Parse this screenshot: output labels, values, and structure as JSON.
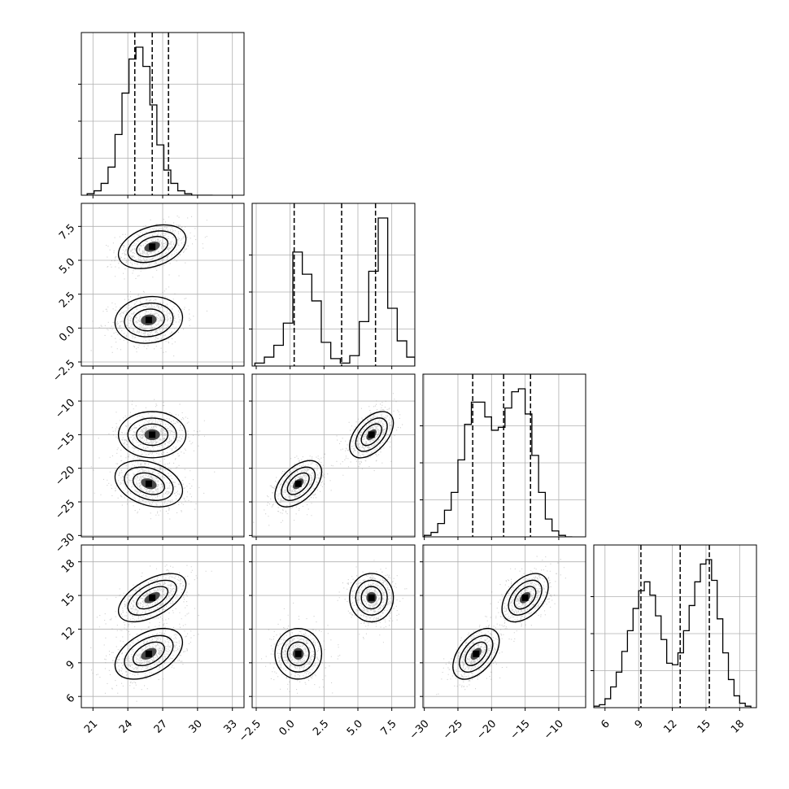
{
  "chart_data": {
    "type": "corner",
    "parameters": [
      {
        "range": [
          20,
          34
        ],
        "ticks": [
          21,
          24,
          27,
          30,
          33
        ],
        "tick_labels": [
          "21",
          "24",
          "27",
          "30",
          "33"
        ]
      },
      {
        "range": [
          -2.8,
          9.2
        ],
        "ticks": [
          -2.5,
          0.0,
          2.5,
          5.0,
          7.5
        ],
        "tick_labels": [
          "−2.5",
          "0.0",
          "2.5",
          "5.0",
          "7.5"
        ]
      },
      {
        "range": [
          -30.2,
          -6.0
        ],
        "ticks": [
          -30,
          -25,
          -20,
          -15,
          -10
        ],
        "tick_labels": [
          "−30",
          "−25",
          "−20",
          "−15",
          "−10"
        ]
      },
      {
        "range": [
          5,
          19.5
        ],
        "ticks": [
          6,
          9,
          12,
          15,
          18
        ],
        "tick_labels": [
          "6",
          "9",
          "12",
          "15",
          "18"
        ]
      }
    ],
    "quantiles": [
      [
        24.6,
        26.1,
        27.5
      ],
      [
        0.3,
        3.8,
        6.3
      ],
      [
        -22.8,
        -18.2,
        -14.2
      ],
      [
        9.2,
        12.7,
        15.3
      ]
    ],
    "histograms": [
      {
        "bin_edges": [
          20.5,
          21.1,
          21.7,
          22.3,
          22.9,
          23.5,
          24.1,
          24.7,
          25.3,
          25.9,
          26.5,
          27.1,
          27.7,
          28.3,
          28.9,
          29.5,
          30.1,
          30.7,
          31.3
        ],
        "counts": [
          1,
          3,
          8,
          19,
          41,
          69,
          92,
          100,
          87,
          61,
          34,
          17,
          8,
          3,
          1,
          0,
          0,
          0
        ]
      },
      {
        "bin_edges": [
          -2.6,
          -1.9,
          -1.2,
          -0.5,
          0.2,
          0.9,
          1.6,
          2.3,
          3.0,
          3.7,
          4.4,
          5.1,
          5.8,
          6.5,
          7.2,
          7.9,
          8.6,
          9.2
        ],
        "counts": [
          2,
          6,
          14,
          29,
          77,
          62,
          44,
          16,
          5,
          2,
          7,
          30,
          64,
          100,
          39,
          17,
          6
        ]
      },
      {
        "bin_edges": [
          -30.0,
          -29.0,
          -28.0,
          -27.0,
          -26.0,
          -25.0,
          -24.0,
          -23.0,
          -22.0,
          -21.0,
          -20.0,
          -19.0,
          -18.0,
          -17.0,
          -16.0,
          -15.0,
          -14.0,
          -13.0,
          -12.0,
          -11.0,
          -10.0,
          -9.0,
          -8.0
        ],
        "counts": [
          1,
          3,
          9,
          18,
          30,
          52,
          76,
          91,
          91,
          81,
          72,
          74,
          87,
          98,
          100,
          83,
          55,
          30,
          12,
          4,
          1,
          0
        ]
      },
      {
        "bin_edges": [
          5.0,
          5.5,
          6.0,
          6.5,
          7.0,
          7.5,
          8.0,
          8.5,
          9.0,
          9.5,
          10.0,
          10.5,
          11.0,
          11.5,
          12.0,
          12.5,
          13.0,
          13.5,
          14.0,
          14.5,
          15.0,
          15.5,
          16.0,
          16.5,
          17.0,
          17.5,
          18.0,
          18.5,
          19.0
        ],
        "counts": [
          1,
          2,
          6,
          14,
          24,
          38,
          52,
          67,
          79,
          85,
          76,
          62,
          46,
          30,
          29,
          37,
          52,
          69,
          85,
          97,
          100,
          86,
          60,
          37,
          19,
          8,
          3,
          1
        ]
      }
    ],
    "clusters": [
      {
        "mean": [
          26.1,
          6.0,
          -15.0,
          14.8
        ],
        "sd": [
          1.35,
          0.75,
          1.6,
          1.0
        ],
        "corr": {
          "0-1": 0.35,
          "0-2": 0.0,
          "0-3": 0.55,
          "1-2": 0.5,
          "1-3": 0.0,
          "2-3": 0.45
        }
      },
      {
        "mean": [
          25.8,
          0.6,
          -22.3,
          9.8
        ],
        "sd": [
          1.35,
          0.8,
          1.6,
          1.05
        ],
        "corr": {
          "0-1": 0.1,
          "0-2": -0.3,
          "0-3": 0.45,
          "1-2": 0.5,
          "1-3": 0.0,
          "2-3": 0.5
        }
      }
    ],
    "grid": true
  }
}
